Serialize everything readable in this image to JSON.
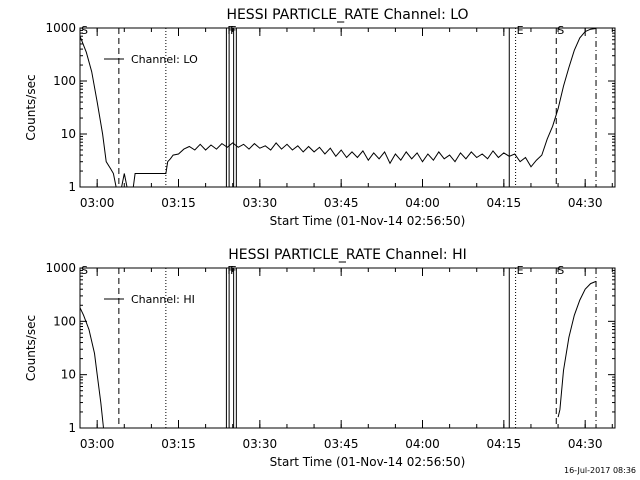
{
  "chart_data": [
    {
      "type": "line",
      "title": "HESSI PARTICLE_RATE Channel: LO",
      "xlabel": "Start Time (01-Nov-14 02:56:50)",
      "ylabel": "Counts/sec",
      "y_scale": "log",
      "ylim": [
        1,
        1000
      ],
      "y_ticks": [
        1,
        10,
        100,
        1000
      ],
      "y_tick_labels": [
        "1",
        "10",
        "100",
        "1000"
      ],
      "xlim": [
        "02:56:50",
        "04:35:30"
      ],
      "x_tick_labels": [
        "03:00",
        "03:15",
        "03:30",
        "03:45",
        "04:00",
        "04:15",
        "04:30"
      ],
      "legend": {
        "placement": "top-left",
        "entries": [
          "Channel: LO"
        ]
      },
      "markers": [
        {
          "time": "02:56:50",
          "label": "S",
          "style": "solid"
        },
        {
          "time": "03:04:00",
          "label": "",
          "style": "dashed"
        },
        {
          "time": "03:12:40",
          "label": "",
          "style": "dotted"
        },
        {
          "time": "03:23:50",
          "label": "F",
          "style": "solid"
        },
        {
          "time": "03:24:20",
          "label": "F",
          "style": "solid"
        },
        {
          "time": "03:25:10",
          "label": "",
          "style": "solid"
        },
        {
          "time": "03:25:40",
          "label": "",
          "style": "solid"
        },
        {
          "time": "04:16:00",
          "label": "",
          "style": "solid"
        },
        {
          "time": "04:17:10",
          "label": "E",
          "style": "dotted"
        },
        {
          "time": "04:24:40",
          "label": "S",
          "style": "dashed"
        },
        {
          "time": "04:32:00",
          "label": "",
          "style": "dashdot"
        }
      ],
      "series": [
        {
          "name": "Channel: LO",
          "points": [
            [
              "02:56:50",
              700
            ],
            [
              "02:58:00",
              350
            ],
            [
              "02:59:00",
              150
            ],
            [
              "03:00:00",
              40
            ],
            [
              "03:01:00",
              10
            ],
            [
              "03:01:40",
              3
            ],
            [
              "03:02:30",
              2.2
            ],
            [
              "03:03:00",
              1.8
            ],
            [
              "03:03:30",
              1.0
            ],
            [
              "03:04:00",
              1.0
            ],
            [
              "03:04:30",
              1.0
            ],
            [
              "03:05:00",
              1.8
            ],
            [
              "03:05:30",
              1.0
            ],
            [
              "03:06:00",
              1.0
            ],
            [
              "03:06:40",
              1.0
            ],
            [
              "03:07:00",
              1.8
            ],
            [
              "03:12:40",
              1.8
            ],
            [
              "03:13:00",
              3.0
            ],
            [
              "03:13:30",
              3.4
            ],
            [
              "03:14:00",
              4.0
            ],
            [
              "03:15:00",
              4.2
            ],
            [
              "03:16:00",
              5.2
            ],
            [
              "03:17:00",
              5.8
            ],
            [
              "03:18:00",
              5.0
            ],
            [
              "03:19:00",
              6.4
            ],
            [
              "03:20:00",
              5.0
            ],
            [
              "03:21:00",
              6.2
            ],
            [
              "03:22:00",
              5.2
            ],
            [
              "03:23:00",
              6.6
            ],
            [
              "03:24:00",
              5.6
            ],
            [
              "03:25:00",
              6.8
            ],
            [
              "03:26:00",
              5.6
            ],
            [
              "03:27:00",
              6.4
            ],
            [
              "03:28:00",
              5.2
            ],
            [
              "03:29:00",
              6.6
            ],
            [
              "03:30:00",
              5.4
            ],
            [
              "03:31:00",
              6.0
            ],
            [
              "03:32:00",
              5.0
            ],
            [
              "03:33:00",
              6.8
            ],
            [
              "03:34:00",
              5.2
            ],
            [
              "03:35:00",
              6.4
            ],
            [
              "03:36:00",
              5.0
            ],
            [
              "03:37:00",
              6.0
            ],
            [
              "03:38:00",
              4.6
            ],
            [
              "03:39:00",
              5.8
            ],
            [
              "03:40:00",
              4.6
            ],
            [
              "03:41:00",
              5.6
            ],
            [
              "03:42:00",
              4.2
            ],
            [
              "03:43:00",
              5.4
            ],
            [
              "03:44:00",
              3.8
            ],
            [
              "03:45:00",
              5.0
            ],
            [
              "03:46:00",
              3.6
            ],
            [
              "03:47:00",
              4.6
            ],
            [
              "03:48:00",
              3.6
            ],
            [
              "03:49:00",
              4.8
            ],
            [
              "03:50:00",
              3.2
            ],
            [
              "03:51:00",
              4.4
            ],
            [
              "03:52:00",
              3.4
            ],
            [
              "03:53:00",
              4.6
            ],
            [
              "03:54:00",
              2.8
            ],
            [
              "03:55:00",
              4.2
            ],
            [
              "03:56:00",
              3.2
            ],
            [
              "03:57:00",
              4.6
            ],
            [
              "03:58:00",
              3.4
            ],
            [
              "03:59:00",
              4.4
            ],
            [
              "04:00:00",
              3.0
            ],
            [
              "04:01:00",
              4.2
            ],
            [
              "04:02:00",
              3.2
            ],
            [
              "04:03:00",
              4.6
            ],
            [
              "04:04:00",
              3.4
            ],
            [
              "04:05:00",
              4.0
            ],
            [
              "04:06:00",
              3.0
            ],
            [
              "04:07:00",
              4.4
            ],
            [
              "04:08:00",
              3.4
            ],
            [
              "04:09:00",
              4.6
            ],
            [
              "04:10:00",
              3.6
            ],
            [
              "04:11:00",
              4.2
            ],
            [
              "04:12:00",
              3.4
            ],
            [
              "04:13:00",
              4.8
            ],
            [
              "04:14:00",
              3.6
            ],
            [
              "04:15:00",
              4.4
            ],
            [
              "04:16:00",
              3.8
            ],
            [
              "04:17:00",
              4.2
            ],
            [
              "04:18:00",
              3.0
            ],
            [
              "04:19:00",
              3.6
            ],
            [
              "04:20:00",
              2.4
            ],
            [
              "04:21:00",
              3.2
            ],
            [
              "04:22:00",
              4.0
            ],
            [
              "04:23:00",
              8.0
            ],
            [
              "04:24:00",
              14
            ],
            [
              "04:25:00",
              30
            ],
            [
              "04:26:00",
              80
            ],
            [
              "04:27:00",
              180
            ],
            [
              "04:28:00",
              380
            ],
            [
              "04:29:00",
              650
            ],
            [
              "04:30:00",
              860
            ],
            [
              "04:31:00",
              950
            ],
            [
              "04:32:00",
              980
            ]
          ]
        }
      ]
    },
    {
      "type": "line",
      "title": "HESSI PARTICLE_RATE Channel: HI",
      "xlabel": "Start Time (01-Nov-14 02:56:50)",
      "ylabel": "Counts/sec",
      "y_scale": "log",
      "ylim": [
        1,
        1000
      ],
      "y_ticks": [
        1,
        10,
        100,
        1000
      ],
      "y_tick_labels": [
        "1",
        "10",
        "100",
        "1000"
      ],
      "xlim": [
        "02:56:50",
        "04:35:30"
      ],
      "x_tick_labels": [
        "03:00",
        "03:15",
        "03:30",
        "03:45",
        "04:00",
        "04:15",
        "04:30"
      ],
      "legend": {
        "placement": "top-left",
        "entries": [
          "Channel: HI"
        ]
      },
      "markers": [
        {
          "time": "02:56:50",
          "label": "S",
          "style": "solid"
        },
        {
          "time": "03:04:00",
          "label": "",
          "style": "dashed"
        },
        {
          "time": "03:12:40",
          "label": "",
          "style": "dotted"
        },
        {
          "time": "03:23:50",
          "label": "F",
          "style": "solid"
        },
        {
          "time": "03:24:20",
          "label": "F",
          "style": "solid"
        },
        {
          "time": "03:25:10",
          "label": "",
          "style": "solid"
        },
        {
          "time": "03:25:40",
          "label": "",
          "style": "solid"
        },
        {
          "time": "04:16:00",
          "label": "",
          "style": "solid"
        },
        {
          "time": "04:17:10",
          "label": "E",
          "style": "dotted"
        },
        {
          "time": "04:24:40",
          "label": "S",
          "style": "dashed"
        },
        {
          "time": "04:32:00",
          "label": "",
          "style": "dashdot"
        }
      ],
      "series": [
        {
          "name": "Channel: HI",
          "points": [
            [
              "02:56:50",
              180
            ],
            [
              "02:57:30",
              130
            ],
            [
              "02:58:30",
              70
            ],
            [
              "02:59:30",
              25
            ],
            [
              "03:00:00",
              10
            ],
            [
              "03:00:40",
              3
            ],
            [
              "03:01:10",
              1.0
            ],
            null,
            [
              "04:25:00",
              1.6
            ],
            [
              "04:25:20",
              2.2
            ],
            [
              "04:26:00",
              12
            ],
            [
              "04:27:00",
              50
            ],
            [
              "04:28:00",
              130
            ],
            [
              "04:29:00",
              250
            ],
            [
              "04:30:00",
              400
            ],
            [
              "04:31:00",
              510
            ],
            [
              "04:32:00",
              560
            ]
          ]
        }
      ]
    }
  ],
  "footer": {
    "timestamp": "16-Jul-2017 08:36"
  }
}
